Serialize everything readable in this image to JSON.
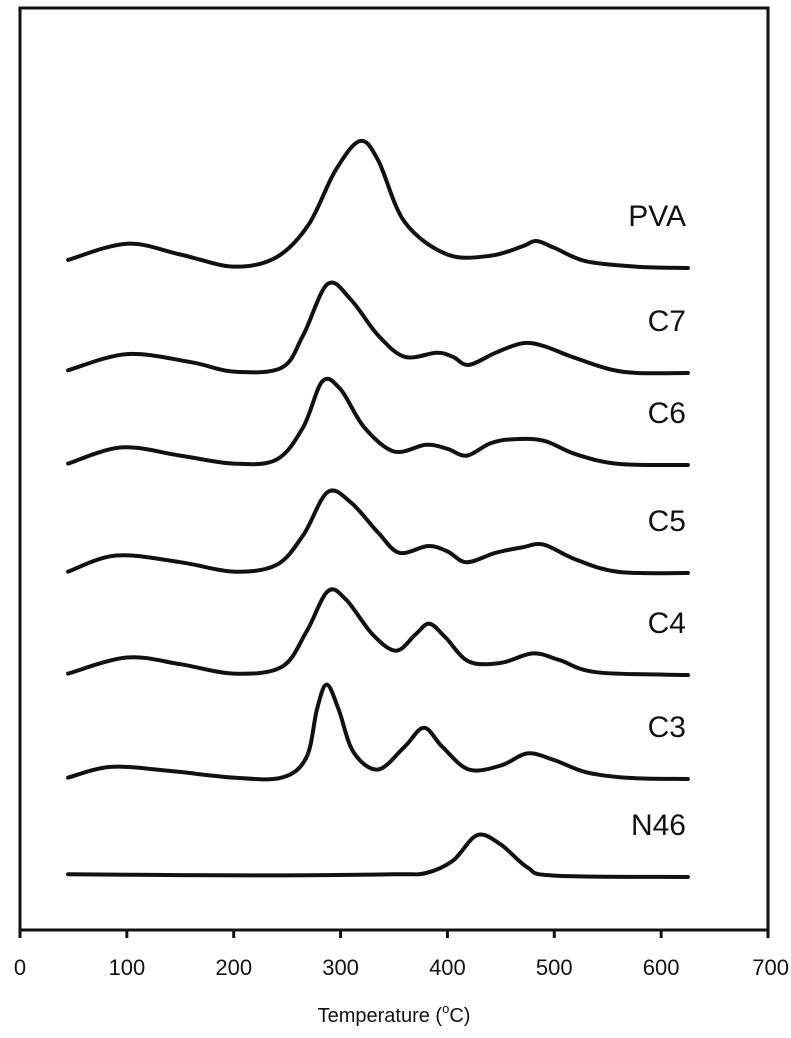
{
  "chart_data": {
    "type": "line",
    "xlabel_prefix": "Temperature (",
    "xlabel_sup": "o",
    "xlabel_suffix": "C)",
    "ylabel": "",
    "xlim": [
      0,
      700
    ],
    "x_ticks": [
      0,
      100,
      200,
      300,
      400,
      500,
      600,
      700
    ],
    "series": [
      {
        "name": "PVA",
        "baseline": 6,
        "points": [
          [
            45,
            0.3
          ],
          [
            100,
            0.9
          ],
          [
            150,
            0.5
          ],
          [
            200,
            0.05
          ],
          [
            240,
            0.4
          ],
          [
            270,
            1.6
          ],
          [
            295,
            3.6
          ],
          [
            318,
            4.7
          ],
          [
            335,
            4.0
          ],
          [
            360,
            1.7
          ],
          [
            400,
            0.5
          ],
          [
            440,
            0.45
          ],
          [
            470,
            0.8
          ],
          [
            483,
            1.0
          ],
          [
            500,
            0.75
          ],
          [
            530,
            0.25
          ],
          [
            580,
            0.04
          ],
          [
            625,
            0.0
          ]
        ]
      },
      {
        "name": "C7",
        "baseline": 5,
        "points": [
          [
            45,
            0.1
          ],
          [
            100,
            0.7
          ],
          [
            160,
            0.4
          ],
          [
            200,
            0.05
          ],
          [
            245,
            0.2
          ],
          [
            265,
            1.4
          ],
          [
            288,
            3.3
          ],
          [
            310,
            2.7
          ],
          [
            335,
            1.4
          ],
          [
            360,
            0.6
          ],
          [
            390,
            0.75
          ],
          [
            405,
            0.6
          ],
          [
            420,
            0.3
          ],
          [
            445,
            0.75
          ],
          [
            470,
            1.1
          ],
          [
            490,
            1.0
          ],
          [
            520,
            0.55
          ],
          [
            565,
            0.04
          ],
          [
            625,
            0.0
          ]
        ]
      },
      {
        "name": "C6",
        "baseline": 4,
        "points": [
          [
            45,
            0.05
          ],
          [
            95,
            0.65
          ],
          [
            150,
            0.35
          ],
          [
            200,
            0.05
          ],
          [
            240,
            0.2
          ],
          [
            265,
            1.4
          ],
          [
            283,
            3.1
          ],
          [
            300,
            2.8
          ],
          [
            322,
            1.4
          ],
          [
            350,
            0.5
          ],
          [
            380,
            0.75
          ],
          [
            400,
            0.6
          ],
          [
            418,
            0.35
          ],
          [
            440,
            0.8
          ],
          [
            460,
            0.95
          ],
          [
            490,
            0.9
          ],
          [
            520,
            0.4
          ],
          [
            560,
            0.04
          ],
          [
            625,
            0.0
          ]
        ]
      },
      {
        "name": "C5",
        "baseline": 3,
        "points": [
          [
            45,
            0.05
          ],
          [
            90,
            0.65
          ],
          [
            150,
            0.4
          ],
          [
            200,
            0.05
          ],
          [
            240,
            0.3
          ],
          [
            265,
            1.4
          ],
          [
            288,
            3.0
          ],
          [
            310,
            2.6
          ],
          [
            335,
            1.5
          ],
          [
            355,
            0.75
          ],
          [
            382,
            1.0
          ],
          [
            400,
            0.8
          ],
          [
            418,
            0.4
          ],
          [
            445,
            0.75
          ],
          [
            470,
            0.95
          ],
          [
            490,
            1.05
          ],
          [
            520,
            0.5
          ],
          [
            560,
            0.04
          ],
          [
            625,
            0.0
          ]
        ]
      },
      {
        "name": "C4",
        "baseline": 2,
        "points": [
          [
            45,
            0.05
          ],
          [
            100,
            0.65
          ],
          [
            150,
            0.4
          ],
          [
            200,
            0.05
          ],
          [
            245,
            0.3
          ],
          [
            268,
            1.6
          ],
          [
            288,
            3.1
          ],
          [
            305,
            2.8
          ],
          [
            330,
            1.5
          ],
          [
            352,
            0.9
          ],
          [
            370,
            1.5
          ],
          [
            383,
            1.9
          ],
          [
            398,
            1.4
          ],
          [
            420,
            0.5
          ],
          [
            450,
            0.45
          ],
          [
            480,
            0.8
          ],
          [
            505,
            0.55
          ],
          [
            540,
            0.1
          ],
          [
            625,
            0.0
          ]
        ]
      },
      {
        "name": "C3",
        "baseline": 1,
        "points": [
          [
            45,
            0.05
          ],
          [
            85,
            0.45
          ],
          [
            140,
            0.3
          ],
          [
            200,
            0.05
          ],
          [
            245,
            0.05
          ],
          [
            268,
            0.8
          ],
          [
            278,
            2.6
          ],
          [
            287,
            3.5
          ],
          [
            298,
            2.6
          ],
          [
            312,
            1.0
          ],
          [
            335,
            0.35
          ],
          [
            360,
            1.2
          ],
          [
            378,
            1.9
          ],
          [
            395,
            1.2
          ],
          [
            420,
            0.35
          ],
          [
            450,
            0.5
          ],
          [
            475,
            0.95
          ],
          [
            500,
            0.7
          ],
          [
            530,
            0.25
          ],
          [
            570,
            0.04
          ],
          [
            625,
            0.0
          ]
        ]
      },
      {
        "name": "N46",
        "baseline": 0,
        "points": [
          [
            45,
            0.1
          ],
          [
            150,
            0.07
          ],
          [
            250,
            0.06
          ],
          [
            350,
            0.1
          ],
          [
            380,
            0.15
          ],
          [
            405,
            0.6
          ],
          [
            428,
            1.55
          ],
          [
            450,
            1.2
          ],
          [
            475,
            0.35
          ],
          [
            500,
            0.05
          ],
          [
            625,
            0.0
          ]
        ]
      }
    ]
  }
}
